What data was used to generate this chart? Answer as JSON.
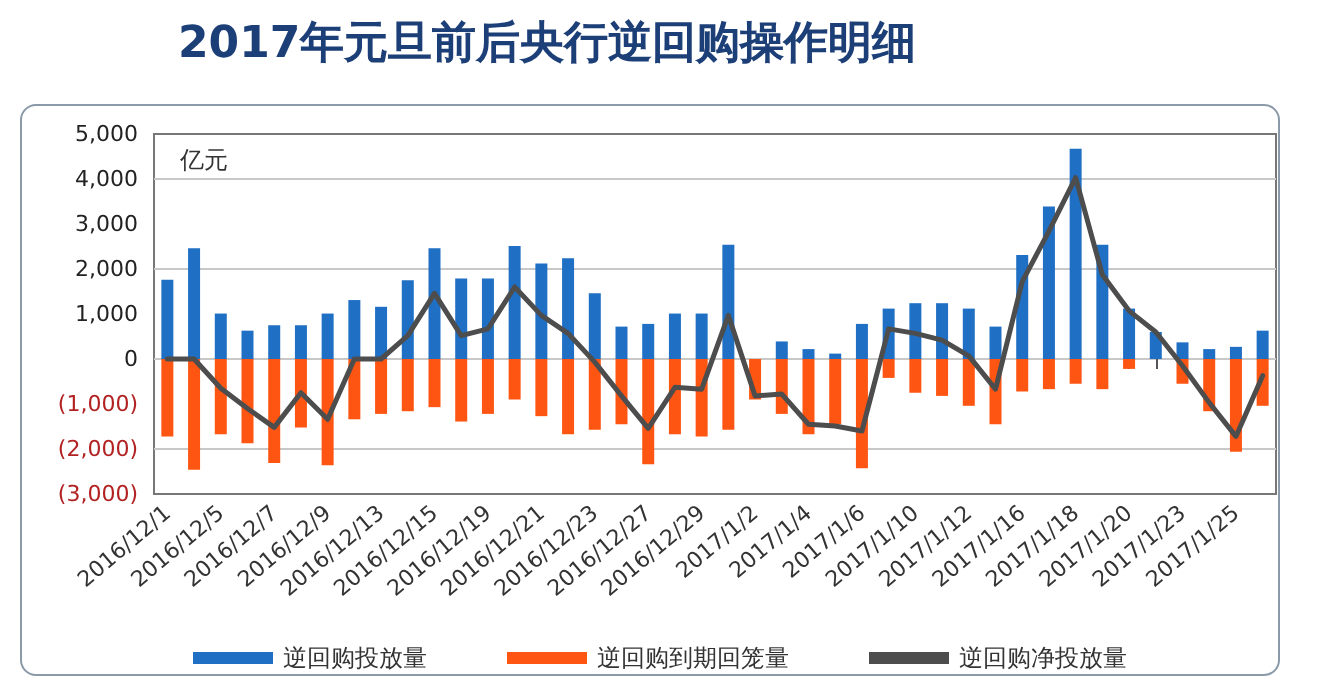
{
  "chart_data": {
    "type": "bar",
    "title": "2017年元旦前后央行逆回购操作明细",
    "annotations": [
      "亿元"
    ],
    "categories": [
      "2016/12/1",
      null,
      "2016/12/5",
      null,
      "2016/12/7",
      null,
      "2016/12/9",
      null,
      "2016/12/13",
      null,
      "2016/12/15",
      null,
      "2016/12/19",
      null,
      "2016/12/21",
      null,
      "2016/12/23",
      null,
      "2016/12/27",
      null,
      "2016/12/29",
      null,
      "2017/1/2",
      null,
      "2017/1/4",
      null,
      "2017/1/6",
      null,
      "2017/1/10",
      null,
      "2017/1/12",
      null,
      "2017/1/16",
      null,
      "2017/1/18",
      null,
      "2017/1/20",
      null,
      "2017/1/23",
      null,
      "2017/1/25",
      null
    ],
    "stacked": true,
    "series": [
      {
        "name": "逆回购投放量",
        "color": "#1f6fc4",
        "values": [
          1760,
          2460,
          1010,
          630,
          750,
          750,
          1010,
          1310,
          1160,
          1750,
          2460,
          1790,
          1790,
          2510,
          2120,
          2240,
          1460,
          720,
          780,
          1010,
          1010,
          2540,
          null,
          390,
          220,
          120,
          780,
          1120,
          1240,
          1240,
          1120,
          720,
          2310,
          3390,
          4670,
          2540,
          1120,
          600,
          370,
          220,
          270,
          630
        ]
      },
      {
        "name": "逆回购到期回笼量",
        "color": "#ff5512",
        "values": [
          -1720,
          -2460,
          -1670,
          -1870,
          -2310,
          -1520,
          -2360,
          -1340,
          -1220,
          -1160,
          -1070,
          -1390,
          -1220,
          -900,
          -1270,
          -1670,
          -1570,
          -1450,
          -2340,
          -1670,
          -1720,
          -1570,
          -900,
          -1220,
          -1670,
          -1450,
          -2430,
          -420,
          -750,
          -820,
          -1040,
          -1450,
          -720,
          -670,
          -550,
          -670,
          -220,
          null,
          -550,
          -1160,
          -2060,
          -1040
        ]
      },
      {
        "name": "逆回购净投放量",
        "type": "line",
        "color": "#4d4d4d",
        "values": [
          0,
          0,
          -650,
          -1100,
          -1520,
          -750,
          -1340,
          0,
          0,
          520,
          1460,
          520,
          670,
          1600,
          970,
          570,
          -70,
          -820,
          -1540,
          -630,
          -670,
          970,
          -820,
          -780,
          -1450,
          -1490,
          -1600,
          670,
          570,
          420,
          70,
          -670,
          1720,
          2840,
          4030,
          1870,
          1070,
          600,
          -150,
          -970,
          -1720,
          -370
        ]
      }
    ],
    "ylim": [
      -3000,
      5000
    ],
    "yticks": [
      {
        "value": 5000,
        "label": "5,000"
      },
      {
        "value": 4000,
        "label": "4,000"
      },
      {
        "value": 3000,
        "label": "3,000"
      },
      {
        "value": 2000,
        "label": "2,000"
      },
      {
        "value": 1000,
        "label": "1,000"
      },
      0,
      {
        "value": -1000,
        "label": "(1,000)"
      },
      {
        "value": -2000,
        "label": "(2,000)"
      },
      {
        "value": -3000,
        "label": "(3,000)"
      }
    ],
    "grid": "y",
    "legend": "bottom",
    "marker": "none",
    "line_style": "solid"
  }
}
